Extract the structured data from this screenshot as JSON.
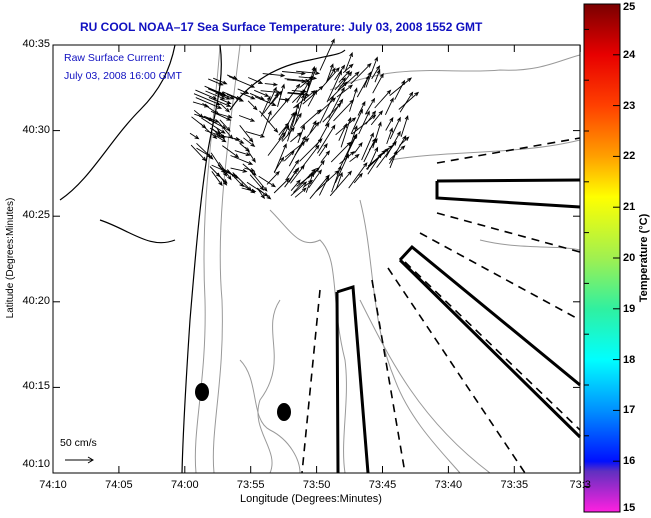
{
  "chart_data": {
    "type": "map",
    "title": "RU COOL  NOAA–17  Sea Surface Temperature:  July 03, 2008 1552 GMT",
    "annotations": [
      "Raw Surface Current:",
      "July 03, 2008 16:00 GMT"
    ],
    "xlabel": "Longitude (Degrees:Minutes)",
    "ylabel": "Latitude (Degrees:Minutes)",
    "xticks": [
      "74:10",
      "74:05",
      "74:00",
      "73:55",
      "73:50",
      "73:45",
      "73:40",
      "73:35",
      "73:3"
    ],
    "yticks": [
      "40:35",
      "40:30",
      "40:25",
      "40:20",
      "40:15",
      "40:10"
    ],
    "scale_label": "50 cm/s",
    "colorbar": {
      "label": "Temperature (°C)",
      "range": [
        15,
        25
      ],
      "ticks": [
        "25",
        "24",
        "23",
        "22",
        "21",
        "20",
        "19",
        "18",
        "17",
        "16",
        "15"
      ]
    }
  }
}
